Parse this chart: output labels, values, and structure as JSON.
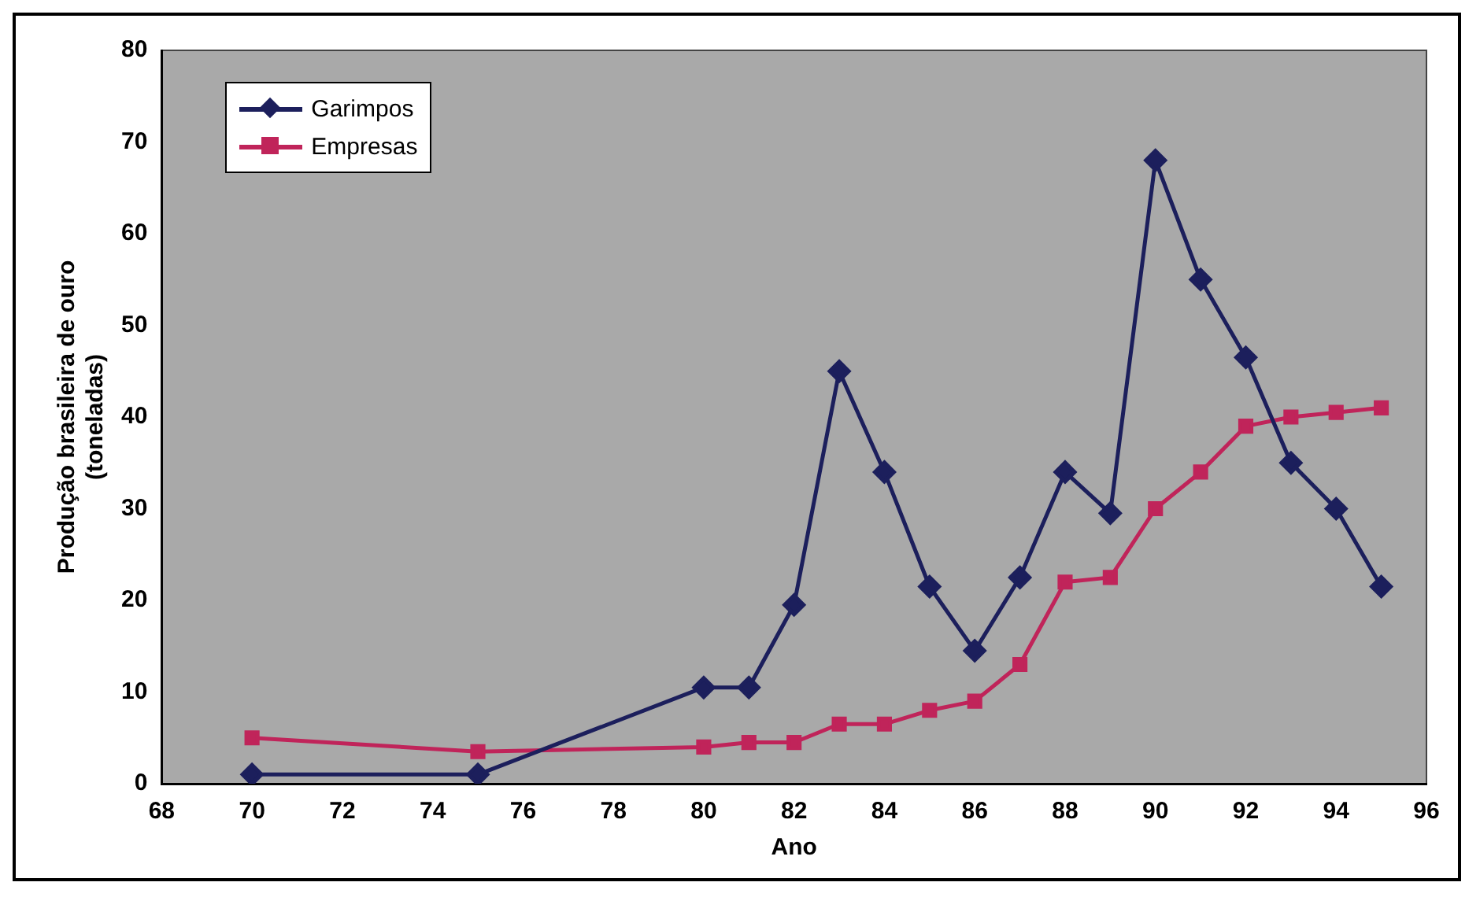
{
  "chart_data": {
    "type": "line",
    "xlabel": "Ano",
    "ylabel": "Produção brasileira de ouro\n(toneladas)",
    "xlim": [
      68,
      96
    ],
    "xticks": [
      68,
      70,
      72,
      74,
      76,
      78,
      80,
      82,
      84,
      86,
      88,
      90,
      92,
      94,
      96
    ],
    "ylim": [
      0,
      80
    ],
    "yticks": [
      0,
      10,
      20,
      30,
      40,
      50,
      60,
      70,
      80
    ],
    "grid": false,
    "legend": "top left",
    "line_style": "solid",
    "series": [
      {
        "name": "Garimpos",
        "color": "#1c1f5c",
        "marker": "diamond",
        "x": [
          70,
          75,
          80,
          81,
          82,
          83,
          84,
          85,
          86,
          87,
          88,
          89,
          90,
          91,
          92,
          93,
          94,
          95
        ],
        "values": [
          1,
          1,
          10.5,
          10.5,
          19.5,
          45,
          34,
          21.5,
          14.5,
          22.5,
          34,
          29.5,
          68,
          55,
          46.5,
          35,
          30,
          21.5
        ]
      },
      {
        "name": "Empresas",
        "color": "#c0245a",
        "marker": "square",
        "x": [
          70,
          75,
          80,
          81,
          82,
          83,
          84,
          85,
          86,
          87,
          88,
          89,
          90,
          91,
          92,
          93,
          94,
          95
        ],
        "values": [
          5,
          3.5,
          4,
          4.5,
          4.5,
          6.5,
          6.5,
          8,
          9,
          13,
          22,
          22.5,
          30,
          34,
          39,
          40,
          40.5,
          41
        ]
      }
    ]
  }
}
